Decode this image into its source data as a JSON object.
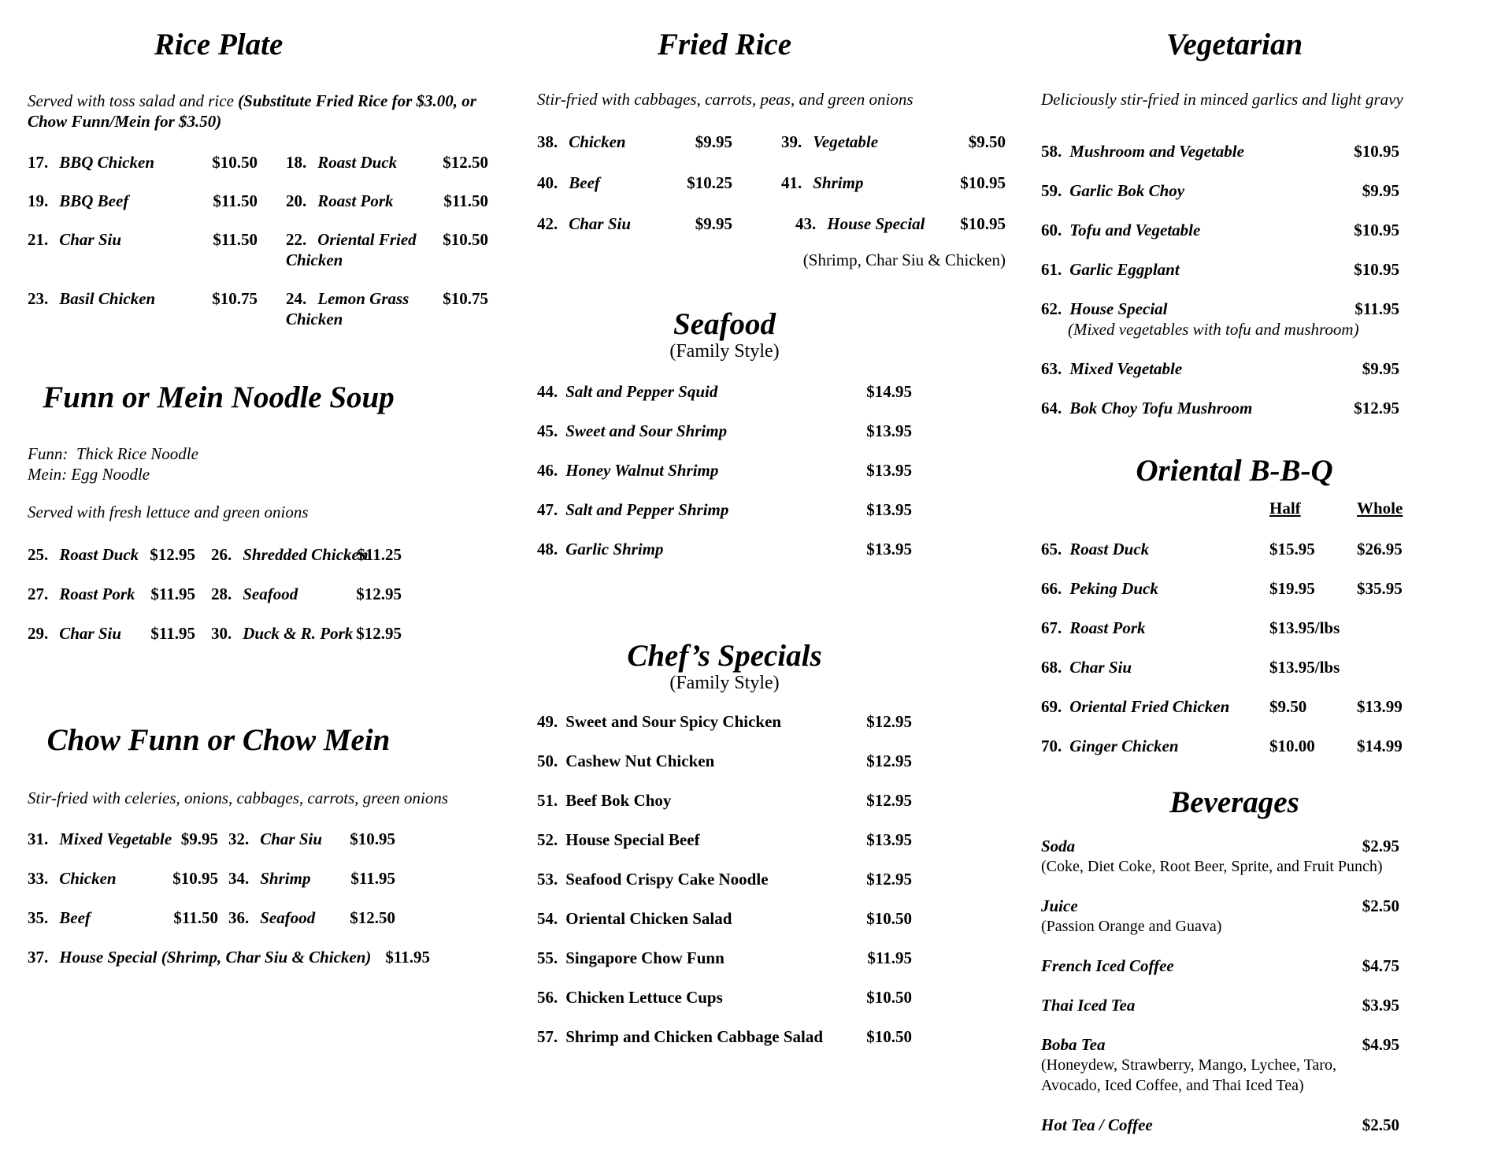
{
  "rice_plate": {
    "title": "Rice Plate",
    "desc_plain": "Served with toss salad and rice ",
    "desc_bold": "(Substitute Fried Rice for $3.00, or Chow Funn/Mein for $3.50)",
    "items": [
      {
        "num": "17.",
        "name": "BBQ Chicken",
        "price": "$10.50"
      },
      {
        "num": "18.",
        "name": "Roast Duck",
        "price": "$12.50"
      },
      {
        "num": "19.",
        "name": "BBQ Beef",
        "price": "$11.50"
      },
      {
        "num": "20.",
        "name": "Roast Pork",
        "price": "$11.50"
      },
      {
        "num": "21.",
        "name": "Char Siu",
        "price": "$11.50"
      },
      {
        "num": "22.",
        "name": "Oriental Fried Chicken",
        "price": "$10.50"
      },
      {
        "num": "23.",
        "name": "Basil Chicken",
        "price": "$10.75"
      },
      {
        "num": "24.",
        "name": "Lemon Grass Chicken",
        "price": "$10.75"
      }
    ]
  },
  "noodle_soup": {
    "title": "Funn or Mein Noodle Soup",
    "note_line1": "Funn:  Thick Rice Noodle",
    "note_line2": "Mein: Egg Noodle",
    "desc": "Served with fresh lettuce and green onions",
    "items": [
      {
        "num": "25.",
        "name": "Roast Duck",
        "price": "$12.95"
      },
      {
        "num": "26.",
        "name": "Shredded Chicken",
        "price": "$11.25"
      },
      {
        "num": "27.",
        "name": "Roast Pork",
        "price": "$11.95"
      },
      {
        "num": "28.",
        "name": "Seafood",
        "price": "$12.95"
      },
      {
        "num": "29.",
        "name": "Char Siu",
        "price": "$11.95"
      },
      {
        "num": "30.",
        "name": "Duck & R. Pork",
        "price": "$12.95"
      }
    ]
  },
  "chow": {
    "title": "Chow Funn or Chow Mein",
    "desc": "Stir-fried with celeries, onions, cabbages, carrots, green onions",
    "items": [
      {
        "num": "31.",
        "name": "Mixed Vegetable",
        "price": "$9.95"
      },
      {
        "num": "32.",
        "name": "Char Siu",
        "price": "$10.95"
      },
      {
        "num": "33.",
        "name": "Chicken",
        "price": "$10.95"
      },
      {
        "num": "34.",
        "name": "Shrimp",
        "price": "$11.95"
      },
      {
        "num": "35.",
        "name": "Beef",
        "price": "$11.50"
      },
      {
        "num": "36.",
        "name": "Seafood",
        "price": "$12.50"
      },
      {
        "num": "37.",
        "name": "House Special (Shrimp, Char Siu & Chicken)",
        "price": "$11.95"
      }
    ]
  },
  "fried_rice": {
    "title": "Fried Rice",
    "desc": "Stir-fried with cabbages, carrots, peas, and green onions",
    "items": [
      {
        "num": "38.",
        "name": "Chicken",
        "price": "$9.95"
      },
      {
        "num": "39.",
        "name": "Vegetable",
        "price": "$9.50"
      },
      {
        "num": "40.",
        "name": "Beef",
        "price": "$10.25"
      },
      {
        "num": "41.",
        "name": "Shrimp",
        "price": "$10.95"
      },
      {
        "num": "42.",
        "name": "Char Siu",
        "price": "$9.95"
      },
      {
        "num": "43.",
        "name": "House Special",
        "price": "$10.95",
        "note": "(Shrimp, Char Siu & Chicken)"
      }
    ]
  },
  "seafood": {
    "title": "Seafood",
    "subtitle": "(Family Style)",
    "items": [
      {
        "num": "44.",
        "name": "Salt and Pepper Squid",
        "price": "$14.95"
      },
      {
        "num": "45.",
        "name": "Sweet and Sour Shrimp",
        "price": "$13.95"
      },
      {
        "num": "46.",
        "name": "Honey Walnut Shrimp",
        "price": "$13.95"
      },
      {
        "num": "47.",
        "name": "Salt and Pepper Shrimp",
        "price": "$13.95"
      },
      {
        "num": "48.",
        "name": "Garlic Shrimp",
        "price": "$13.95"
      }
    ]
  },
  "chefs_specials": {
    "title": "Chef’s Specials",
    "subtitle": "(Family Style)",
    "items": [
      {
        "num": "49.",
        "name": "Sweet and Sour Spicy Chicken",
        "price": "$12.95"
      },
      {
        "num": "50.",
        "name": "Cashew Nut Chicken",
        "price": "$12.95"
      },
      {
        "num": "51.",
        "name": "Beef Bok Choy",
        "price": "$12.95"
      },
      {
        "num": "52.",
        "name": "House Special Beef",
        "price": "$13.95"
      },
      {
        "num": "53.",
        "name": "Seafood Crispy Cake Noodle",
        "price": "$12.95"
      },
      {
        "num": "54.",
        "name": "Oriental Chicken Salad",
        "price": "$10.50"
      },
      {
        "num": "55.",
        "name": "Singapore Chow Funn",
        "price": "$11.95"
      },
      {
        "num": "56.",
        "name": "Chicken Lettuce Cups",
        "price": "$10.50"
      },
      {
        "num": "57.",
        "name": "Shrimp and Chicken Cabbage Salad",
        "price": "$10.50"
      }
    ]
  },
  "vegetarian": {
    "title": "Vegetarian",
    "desc": "Deliciously stir-fried in minced garlics and light gravy",
    "items": [
      {
        "num": "58.",
        "name": "Mushroom and Vegetable",
        "price": "$10.95"
      },
      {
        "num": "59.",
        "name": "Garlic Bok Choy",
        "price": "$9.95"
      },
      {
        "num": "60.",
        "name": "Tofu and Vegetable",
        "price": "$10.95"
      },
      {
        "num": "61.",
        "name": "Garlic Eggplant",
        "price": "$10.95"
      },
      {
        "num": "62.",
        "name": "House Special",
        "price": "$11.95",
        "note": "(Mixed vegetables with tofu and mushroom)"
      },
      {
        "num": "63.",
        "name": "Mixed Vegetable",
        "price": "$9.95"
      },
      {
        "num": "64.",
        "name": "Bok Choy Tofu Mushroom",
        "price": "$12.95"
      }
    ]
  },
  "bbq": {
    "title": "Oriental B-B-Q",
    "half_header": "Half",
    "whole_header": "Whole",
    "items": [
      {
        "num": "65.",
        "name": "Roast Duck",
        "half": "$15.95",
        "whole": "$26.95"
      },
      {
        "num": "66.",
        "name": "Peking Duck",
        "half": "$19.95",
        "whole": "$35.95"
      },
      {
        "num": "67.",
        "name": "Roast Pork",
        "half": "$13.95/lbs",
        "whole": ""
      },
      {
        "num": "68.",
        "name": "Char Siu",
        "half": "$13.95/lbs",
        "whole": ""
      },
      {
        "num": "69.",
        "name": "Oriental Fried Chicken",
        "half": "$9.50",
        "whole": "$13.99"
      },
      {
        "num": "70.",
        "name": "Ginger Chicken",
        "half": "$10.00",
        "whole": "$14.99"
      }
    ]
  },
  "beverages": {
    "title": "Beverages",
    "items": [
      {
        "name": "Soda",
        "price": "$2.95",
        "note": "(Coke, Diet Coke, Root Beer, Sprite, and Fruit Punch)"
      },
      {
        "name": "Juice",
        "price": "$2.50",
        "note": "(Passion Orange and Guava)"
      },
      {
        "name": "French Iced Coffee",
        "price": "$4.75"
      },
      {
        "name": "Thai Iced Tea",
        "price": "$3.95"
      },
      {
        "name": "Boba Tea",
        "price": "$4.95",
        "note": "(Honeydew, Strawberry, Mango, Lychee, Taro,",
        "note2": "Avocado, Iced Coffee, and Thai Iced Tea)"
      },
      {
        "name": "Hot Tea / Coffee",
        "price": "$2.50"
      }
    ]
  },
  "colors": {
    "background": "#ffffff",
    "text": "#000000"
  }
}
